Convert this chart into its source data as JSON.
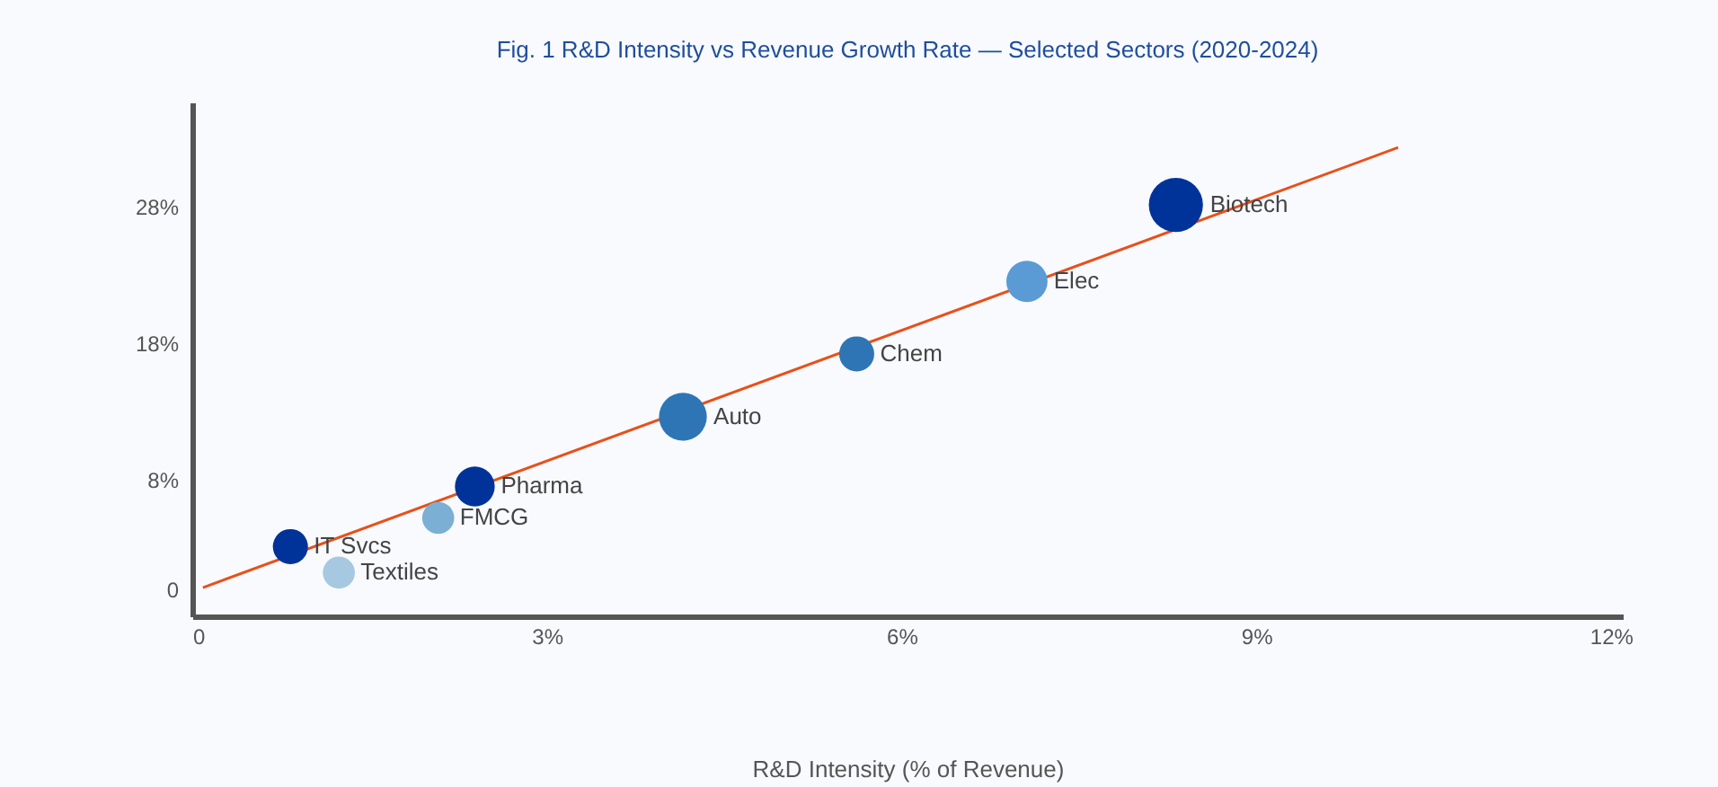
{
  "chart_data": {
    "type": "bubble",
    "title": "Fig. 1  R&D Intensity vs Revenue Growth Rate — Selected Sectors (2020-2024)",
    "xlabel": "R&D Intensity (% of Revenue)",
    "xlim": [
      0,
      12.1
    ],
    "xticks": [
      0,
      {
        "value": 3,
        "label": "3%"
      },
      {
        "value": 6,
        "label": "6%"
      },
      {
        "value": 9,
        "label": "9%"
      },
      {
        "value": 12,
        "label": "12%"
      }
    ],
    "ylim": [
      -2,
      35.6
    ],
    "yticks": [
      0,
      {
        "value": 8,
        "label": "8%"
      },
      {
        "value": 18,
        "label": "18%"
      },
      {
        "value": 28,
        "label": "28%"
      }
    ],
    "grid": false,
    "series": [
      {
        "x": [
          0.83,
          1.24,
          2.08,
          2.39,
          4.15,
          5.62,
          7.06,
          8.32
        ],
        "values": [
          3.1,
          1.2,
          5.2,
          7.5,
          12.6,
          17.2,
          22.5,
          28.1
        ],
        "sizes": [
          0.42,
          0.35,
          0.35,
          0.54,
          0.78,
          0.42,
          0.58,
          1
        ],
        "colors": [
          "#003399",
          "#a6c8e0",
          "#7bafd4",
          "#003399",
          "#2e75b6",
          "#2e75b6",
          "#5b9bd5",
          "#003399"
        ]
      },
      {
        "type": "line",
        "x": [
          0.09,
          10.2
        ],
        "values": [
          0.1,
          32.3
        ],
        "color": "#e8501a",
        "line_style": "solid"
      }
    ],
    "annotations": [
      {
        "text": "IT Svcs",
        "x": 0.83,
        "y": 3.1
      },
      {
        "text": "Textiles",
        "x": 1.24,
        "y": 1.2
      },
      {
        "text": "FMCG",
        "x": 2.08,
        "y": 5.2
      },
      {
        "text": "Pharma",
        "x": 2.39,
        "y": 7.5
      },
      {
        "text": "Auto",
        "x": 4.15,
        "y": 12.6
      },
      {
        "text": "Chem",
        "x": 5.62,
        "y": 17.2
      },
      {
        "text": "Elec",
        "x": 7.06,
        "y": 22.5
      },
      {
        "text": "Biotech",
        "x": 8.32,
        "y": 28.1
      }
    ]
  }
}
